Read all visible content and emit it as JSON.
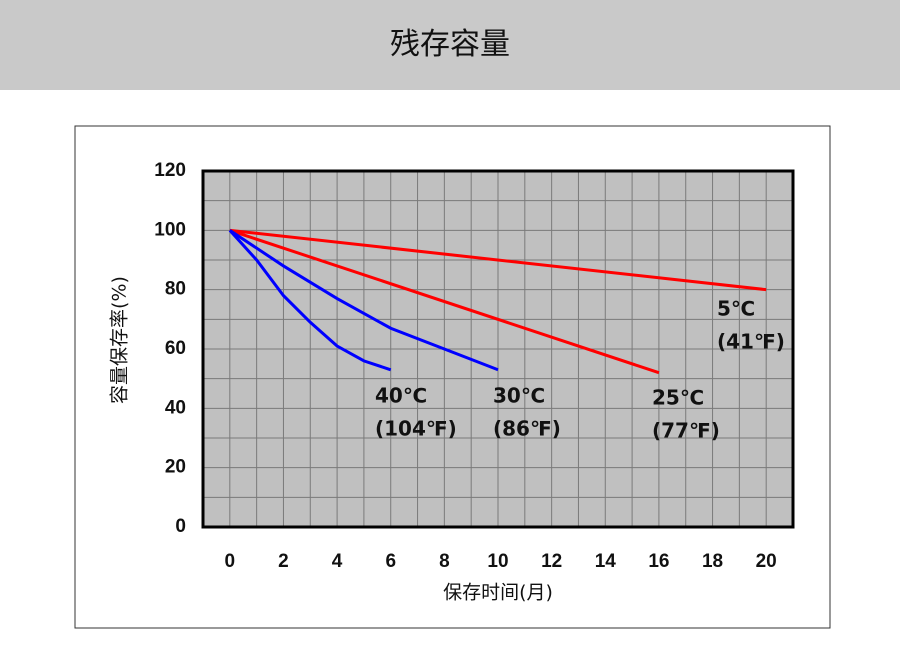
{
  "header": {
    "title": "残存容量"
  },
  "chart_data": {
    "type": "line",
    "x_label": "保存时间(月)",
    "y_label": "容量保存率(%)",
    "xlim": [
      -1,
      21
    ],
    "xticks": [
      0,
      2,
      4,
      6,
      8,
      10,
      12,
      14,
      16,
      18,
      20
    ],
    "ylim": [
      0,
      120
    ],
    "yticks": [
      0,
      20,
      40,
      60,
      80,
      100,
      120
    ],
    "grid": true,
    "series": [
      {
        "name": "5℃",
        "label_lines": [
          "5℃",
          "(41℉)"
        ],
        "color": "#ff0000",
        "x": [
          0,
          20
        ],
        "values": [
          100,
          80
        ]
      },
      {
        "name": "25℃",
        "label_lines": [
          "25℃",
          "(77℉)"
        ],
        "color": "#ff0000",
        "x": [
          0,
          16
        ],
        "values": [
          100,
          52
        ]
      },
      {
        "name": "30℃",
        "label_lines": [
          "30℃",
          "(86℉)"
        ],
        "color": "#0000ff",
        "x": [
          0,
          2,
          4,
          6,
          8,
          10
        ],
        "values": [
          100,
          88,
          77,
          67,
          60,
          53
        ]
      },
      {
        "name": "40℃",
        "label_lines": [
          "40℃",
          "(104℉)"
        ],
        "color": "#0000ff",
        "x": [
          0,
          1,
          2,
          3,
          4,
          5,
          6
        ],
        "values": [
          100,
          90,
          78,
          69,
          61,
          56,
          53
        ]
      }
    ]
  }
}
